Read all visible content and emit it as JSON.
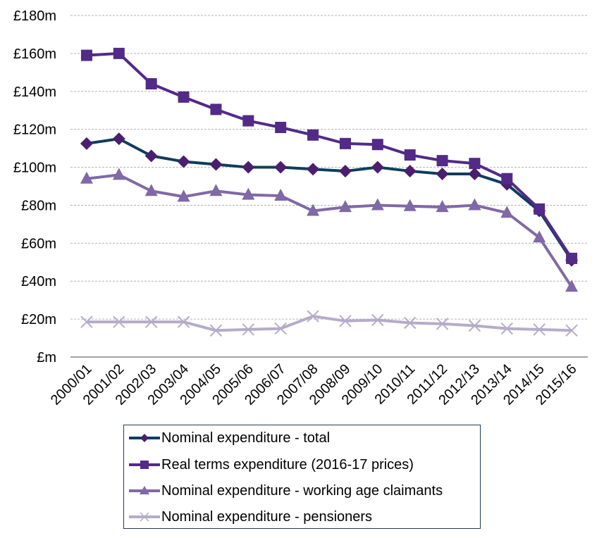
{
  "chart_data": {
    "type": "line",
    "title": "",
    "xlabel": "",
    "ylabel": "",
    "ylim": [
      0,
      180
    ],
    "yticks": [
      0,
      20,
      40,
      60,
      80,
      100,
      120,
      140,
      160,
      180
    ],
    "ytick_labels": [
      "£m",
      "£20m",
      "£40m",
      "£60m",
      "£80m",
      "£100m",
      "£120m",
      "£140m",
      "£160m",
      "£180m"
    ],
    "grid": true,
    "legend_position": "bottom",
    "categories": [
      "2000/01",
      "2001/02",
      "2002/03",
      "2003/04",
      "2004/05",
      "2005/06",
      "2006/07",
      "2007/08",
      "2008/09",
      "2009/10",
      "2010/11",
      "2011/12",
      "2012/13",
      "2013/14",
      "2014/15",
      "2015/16"
    ],
    "series": [
      {
        "name": "Nominal expenditure - total",
        "color": "#0f3d5c",
        "marker_color": "#4a1f6e",
        "marker": "diamond",
        "values": [
          112.5,
          115,
          106,
          103,
          101.5,
          100,
          100,
          99,
          98,
          100,
          98,
          96.5,
          96.5,
          91,
          77,
          51
        ]
      },
      {
        "name": "Real terms expenditure (2016-17 prices)",
        "color": "#522a87",
        "marker_color": "#522a87",
        "marker": "square",
        "values": [
          159,
          160,
          144,
          137,
          130.5,
          124.5,
          121,
          117,
          112.5,
          112,
          106.5,
          103.5,
          102,
          94,
          78,
          52
        ]
      },
      {
        "name": "Nominal expenditure - working age claimants",
        "color": "#8069a6",
        "marker_color": "#8069a6",
        "marker": "triangle",
        "values": [
          94,
          96,
          87.5,
          84.5,
          87.5,
          85.5,
          85,
          77,
          79,
          80,
          79.5,
          79,
          80,
          76,
          63,
          37
        ]
      },
      {
        "name": "Nominal expenditure - pensioners",
        "color": "#b5acc9",
        "marker_color": "#b5acc9",
        "marker": "x",
        "values": [
          18.5,
          18.5,
          18.5,
          18.5,
          14,
          14.5,
          15,
          21.5,
          19,
          19.5,
          18,
          17.5,
          16.5,
          15,
          14.5,
          14
        ]
      }
    ]
  }
}
